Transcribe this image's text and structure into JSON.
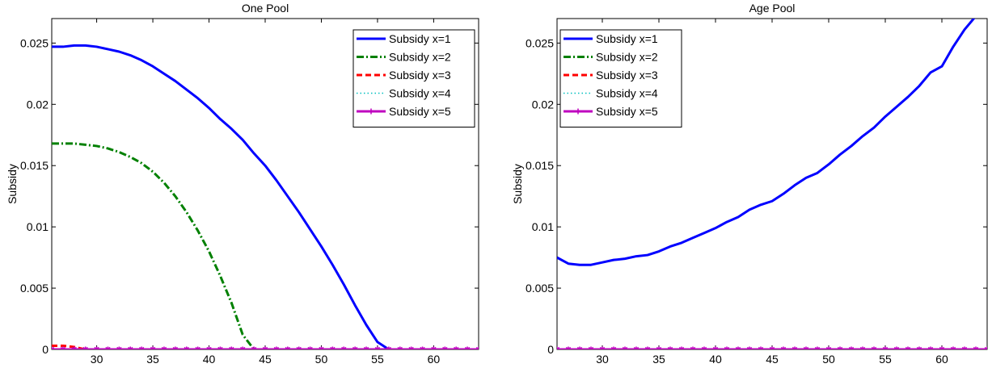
{
  "chart_data": [
    {
      "type": "line",
      "title": "One Pool",
      "xlabel": "",
      "ylabel": "Subsidy",
      "xlim": [
        26,
        64
      ],
      "ylim": [
        0,
        0.027
      ],
      "xticks": [
        30,
        35,
        40,
        45,
        50,
        55,
        60
      ],
      "yticks": [
        0,
        0.005,
        0.01,
        0.015,
        0.02,
        0.025
      ],
      "ytick_labels": [
        "0",
        "0.005",
        "0.01",
        "0.015",
        "0.02",
        "0.025"
      ],
      "legend_position": "top-right",
      "series": [
        {
          "name": "Subsidy x=1",
          "color": "#0000ff",
          "style": "solid",
          "x": [
            26,
            27,
            28,
            29,
            30,
            31,
            32,
            33,
            34,
            35,
            36,
            37,
            38,
            39,
            40,
            41,
            42,
            43,
            44,
            45,
            46,
            47,
            48,
            49,
            50,
            51,
            52,
            53,
            54,
            55,
            56,
            57,
            58,
            59,
            60,
            61,
            62,
            63,
            64
          ],
          "y": [
            0.0247,
            0.0247,
            0.0248,
            0.0248,
            0.0247,
            0.0245,
            0.0243,
            0.024,
            0.0236,
            0.0231,
            0.0225,
            0.0219,
            0.0212,
            0.0205,
            0.0197,
            0.0188,
            0.018,
            0.0171,
            0.016,
            0.015,
            0.0138,
            0.0125,
            0.0112,
            0.0098,
            0.0084,
            0.0069,
            0.0053,
            0.0036,
            0.002,
            0.0006,
            0,
            0,
            0,
            0,
            0,
            0,
            0,
            0,
            0
          ]
        },
        {
          "name": "Subsidy x=2",
          "color": "#008000",
          "style": "dashdot",
          "x": [
            26,
            27,
            28,
            29,
            30,
            31,
            32,
            33,
            34,
            35,
            36,
            37,
            38,
            39,
            40,
            41,
            42,
            43,
            44,
            45,
            46,
            47,
            48,
            49,
            50,
            51,
            52,
            53,
            54,
            55,
            56,
            57,
            58,
            59,
            60,
            61,
            62,
            63,
            64
          ],
          "y": [
            0.0168,
            0.0168,
            0.0168,
            0.0167,
            0.0166,
            0.0164,
            0.0161,
            0.0157,
            0.0152,
            0.0145,
            0.0136,
            0.0125,
            0.0112,
            0.0097,
            0.008,
            0.006,
            0.0038,
            0.0012,
            0,
            0,
            0,
            0,
            0,
            0,
            0,
            0,
            0,
            0,
            0,
            0,
            0,
            0,
            0,
            0,
            0,
            0,
            0,
            0,
            0
          ]
        },
        {
          "name": "Subsidy x=3",
          "color": "#ff0000",
          "style": "dashed",
          "x": [
            26,
            27,
            28,
            29,
            30,
            31,
            32,
            33,
            34,
            35,
            36,
            37,
            38,
            39,
            40,
            41,
            42,
            43,
            44,
            45,
            46,
            47,
            48,
            49,
            50,
            51,
            52,
            53,
            54,
            55,
            56,
            57,
            58,
            59,
            60,
            61,
            62,
            63,
            64
          ],
          "y": [
            0.0003,
            0.0003,
            0.0002,
            0,
            0,
            0,
            0,
            0,
            0,
            0,
            0,
            0,
            0,
            0,
            0,
            0,
            0,
            0,
            0,
            0,
            0,
            0,
            0,
            0,
            0,
            0,
            0,
            0,
            0,
            0,
            0,
            0,
            0,
            0,
            0,
            0,
            0,
            0,
            0
          ]
        },
        {
          "name": "Subsidy x=4",
          "color": "#00bfbf",
          "style": "dotted",
          "x": [
            26,
            27,
            28,
            29,
            30,
            31,
            32,
            33,
            34,
            35,
            36,
            37,
            38,
            39,
            40,
            41,
            42,
            43,
            44,
            45,
            46,
            47,
            48,
            49,
            50,
            51,
            52,
            53,
            54,
            55,
            56,
            57,
            58,
            59,
            60,
            61,
            62,
            63,
            64
          ],
          "y": [
            0,
            0,
            0,
            0,
            0,
            0,
            0,
            0,
            0,
            0,
            0,
            0,
            0,
            0,
            0,
            0,
            0,
            0,
            0,
            0,
            0,
            0,
            0,
            0,
            0,
            0,
            0,
            0,
            0,
            0,
            0,
            0,
            0,
            0,
            0,
            0,
            0,
            0,
            0
          ]
        },
        {
          "name": "Subsidy x=5",
          "color": "#bf00bf",
          "style": "solid-star",
          "x": [
            26,
            27,
            28,
            29,
            30,
            31,
            32,
            33,
            34,
            35,
            36,
            37,
            38,
            39,
            40,
            41,
            42,
            43,
            44,
            45,
            46,
            47,
            48,
            49,
            50,
            51,
            52,
            53,
            54,
            55,
            56,
            57,
            58,
            59,
            60,
            61,
            62,
            63,
            64
          ],
          "y": [
            0,
            0,
            0,
            0,
            0,
            0,
            0,
            0,
            0,
            0,
            0,
            0,
            0,
            0,
            0,
            0,
            0,
            0,
            0,
            0,
            0,
            0,
            0,
            0,
            0,
            0,
            0,
            0,
            0,
            0,
            0,
            0,
            0,
            0,
            0,
            0,
            0,
            0,
            0
          ]
        }
      ]
    },
    {
      "type": "line",
      "title": "Age Pool",
      "xlabel": "",
      "ylabel": "Subsidy",
      "xlim": [
        26,
        64
      ],
      "ylim": [
        0,
        0.027
      ],
      "xticks": [
        30,
        35,
        40,
        45,
        50,
        55,
        60
      ],
      "yticks": [
        0,
        0.005,
        0.01,
        0.015,
        0.02,
        0.025
      ],
      "ytick_labels": [
        "0",
        "0.005",
        "0.01",
        "0.015",
        "0.02",
        "0.025"
      ],
      "legend_position": "top-left",
      "series": [
        {
          "name": "Subsidy x=1",
          "color": "#0000ff",
          "style": "solid",
          "x": [
            26,
            27,
            28,
            29,
            30,
            31,
            32,
            33,
            34,
            35,
            36,
            37,
            38,
            39,
            40,
            41,
            42,
            43,
            44,
            45,
            46,
            47,
            48,
            49,
            50,
            51,
            52,
            53,
            54,
            55,
            56,
            57,
            58,
            59,
            60,
            61,
            62,
            63,
            64
          ],
          "y": [
            0.0075,
            0.007,
            0.0069,
            0.0069,
            0.0071,
            0.0073,
            0.0074,
            0.0076,
            0.0077,
            0.008,
            0.0084,
            0.0087,
            0.0091,
            0.0095,
            0.0099,
            0.0104,
            0.0108,
            0.0114,
            0.0118,
            0.0121,
            0.0127,
            0.0134,
            0.014,
            0.0144,
            0.0151,
            0.0159,
            0.0166,
            0.0174,
            0.0181,
            0.019,
            0.0198,
            0.0206,
            0.0215,
            0.0226,
            0.0231,
            0.0247,
            0.0261,
            0.0272,
            0.0283
          ]
        },
        {
          "name": "Subsidy x=2",
          "color": "#008000",
          "style": "dashdot",
          "x": [
            26,
            27,
            28,
            29,
            30,
            31,
            32,
            33,
            34,
            35,
            36,
            37,
            38,
            39,
            40,
            41,
            42,
            43,
            44,
            45,
            46,
            47,
            48,
            49,
            50,
            51,
            52,
            53,
            54,
            55,
            56,
            57,
            58,
            59,
            60,
            61,
            62,
            63,
            64
          ],
          "y": [
            0,
            0,
            0,
            0,
            0,
            0,
            0,
            0,
            0,
            0,
            0,
            0,
            0,
            0,
            0,
            0,
            0,
            0,
            0,
            0,
            0,
            0,
            0,
            0,
            0,
            0,
            0,
            0,
            0,
            0,
            0,
            0,
            0,
            0,
            0,
            0,
            0,
            0,
            0
          ]
        },
        {
          "name": "Subsidy x=3",
          "color": "#ff0000",
          "style": "dashed",
          "x": [
            26,
            27,
            28,
            29,
            30,
            31,
            32,
            33,
            34,
            35,
            36,
            37,
            38,
            39,
            40,
            41,
            42,
            43,
            44,
            45,
            46,
            47,
            48,
            49,
            50,
            51,
            52,
            53,
            54,
            55,
            56,
            57,
            58,
            59,
            60,
            61,
            62,
            63,
            64
          ],
          "y": [
            0,
            0,
            0,
            0,
            0,
            0,
            0,
            0,
            0,
            0,
            0,
            0,
            0,
            0,
            0,
            0,
            0,
            0,
            0,
            0,
            0,
            0,
            0,
            0,
            0,
            0,
            0,
            0,
            0,
            0,
            0,
            0,
            0,
            0,
            0,
            0,
            0,
            0,
            0
          ]
        },
        {
          "name": "Subsidy x=4",
          "color": "#00bfbf",
          "style": "dotted",
          "x": [
            26,
            27,
            28,
            29,
            30,
            31,
            32,
            33,
            34,
            35,
            36,
            37,
            38,
            39,
            40,
            41,
            42,
            43,
            44,
            45,
            46,
            47,
            48,
            49,
            50,
            51,
            52,
            53,
            54,
            55,
            56,
            57,
            58,
            59,
            60,
            61,
            62,
            63,
            64
          ],
          "y": [
            0,
            0,
            0,
            0,
            0,
            0,
            0,
            0,
            0,
            0,
            0,
            0,
            0,
            0,
            0,
            0,
            0,
            0,
            0,
            0,
            0,
            0,
            0,
            0,
            0,
            0,
            0,
            0,
            0,
            0,
            0,
            0,
            0,
            0,
            0,
            0,
            0,
            0,
            0
          ]
        },
        {
          "name": "Subsidy x=5",
          "color": "#bf00bf",
          "style": "solid-star",
          "x": [
            26,
            27,
            28,
            29,
            30,
            31,
            32,
            33,
            34,
            35,
            36,
            37,
            38,
            39,
            40,
            41,
            42,
            43,
            44,
            45,
            46,
            47,
            48,
            49,
            50,
            51,
            52,
            53,
            54,
            55,
            56,
            57,
            58,
            59,
            60,
            61,
            62,
            63,
            64
          ],
          "y": [
            0,
            0,
            0,
            0,
            0,
            0,
            0,
            0,
            0,
            0,
            0,
            0,
            0,
            0,
            0,
            0,
            0,
            0,
            0,
            0,
            0,
            0,
            0,
            0,
            0,
            0,
            0,
            0,
            0,
            0,
            0,
            0,
            0,
            0,
            0,
            0,
            0,
            0,
            0
          ]
        }
      ]
    }
  ]
}
